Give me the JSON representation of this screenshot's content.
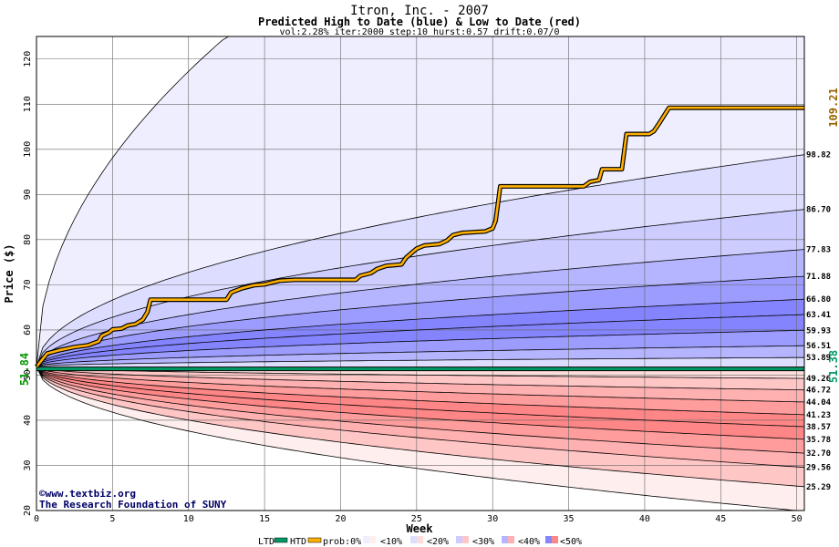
{
  "header": {
    "title": "Itron, Inc. - 2007",
    "subtitle": "Predicted High to Date (blue) &  Low to Date (red)",
    "params": "vol:2.28% iter:2000 step:10 hurst:0.57 drift:0.07/0"
  },
  "credits": {
    "copyright_symbol": "©",
    "site": "www.textbiz.org",
    "org": "The Research Foundation of SUNY"
  },
  "legend": {
    "ltd": "LTD",
    "htd": "HTD",
    "prob": "prob:0%",
    "b10": "<10%",
    "b20": "<20%",
    "b30": "<30%",
    "b40": "<40%",
    "b50": "<50%"
  },
  "colors": {
    "htd_line": "#ffb000",
    "ltd_line": "#009966",
    "start_label": "#009900",
    "end_htd_label": "#996600",
    "end_ltd_label": "#009966",
    "blue_bands": [
      "#eeeeff",
      "#ddddff",
      "#ccccff",
      "#b4b4ff",
      "#9c9cff",
      "#8484ff"
    ],
    "red_bands": [
      "#ffeeee",
      "#ffdcdc",
      "#ffc6c6",
      "#ffb0b0",
      "#ff9c9c",
      "#ff8686"
    ]
  },
  "chart_data": {
    "type": "area",
    "title": "Itron, Inc. - 2007",
    "subtitle": "Predicted High to Date (blue) &  Low to Date (red)",
    "xlabel": "Week",
    "ylabel": "Price ($)",
    "xlim": [
      0,
      50.5
    ],
    "ylim": [
      20,
      125
    ],
    "x_ticks": [
      0,
      5,
      10,
      15,
      20,
      25,
      30,
      35,
      40,
      45,
      50
    ],
    "y_ticks": [
      20,
      30,
      40,
      50,
      60,
      70,
      80,
      90,
      100,
      110,
      120
    ],
    "grid": true,
    "start_price": 51.84,
    "start_price_label": "51.84",
    "end_high_to_date": 109.21,
    "end_high_to_date_label": "109.21",
    "end_low_to_date": 51.38,
    "end_low_to_date_label": "51.38",
    "high_quantile_curves": [
      {
        "end_value": 98.82,
        "label": "98.82"
      },
      {
        "end_value": 86.7,
        "label": "86.70"
      },
      {
        "end_value": 77.83,
        "label": "77.83"
      },
      {
        "end_value": 71.88,
        "label": "71.88"
      },
      {
        "end_value": 66.8,
        "label": "66.80"
      },
      {
        "end_value": 63.41,
        "label": "63.41"
      },
      {
        "end_value": 59.93,
        "label": "59.93"
      },
      {
        "end_value": 56.51,
        "label": "56.51"
      },
      {
        "end_value": 53.89,
        "label": "53.89"
      }
    ],
    "low_quantile_curves": [
      {
        "end_value": 49.26,
        "label": "49.26"
      },
      {
        "end_value": 46.72,
        "label": "46.72"
      },
      {
        "end_value": 44.04,
        "label": "44.04"
      },
      {
        "end_value": 41.23,
        "label": "41.23"
      },
      {
        "end_value": 38.57,
        "label": "38.57"
      },
      {
        "end_value": 35.78,
        "label": "35.78"
      },
      {
        "end_value": 32.7,
        "label": "32.70"
      },
      {
        "end_value": 29.56,
        "label": "29.56"
      },
      {
        "end_value": 25.29,
        "label": "25.29"
      }
    ],
    "envelope": {
      "upper_week12_5": 125,
      "lower_week50": 20
    },
    "high_to_date_path": [
      [
        0,
        51.84
      ],
      [
        0.7,
        54.8
      ],
      [
        1.5,
        55.5
      ],
      [
        2.5,
        56.2
      ],
      [
        3.4,
        56.6
      ],
      [
        4.1,
        57.5
      ],
      [
        4.3,
        58.7
      ],
      [
        4.8,
        59.5
      ],
      [
        5.0,
        60.1
      ],
      [
        5.6,
        60.3
      ],
      [
        6.0,
        61.0
      ],
      [
        6.5,
        61.3
      ],
      [
        7.0,
        62.3
      ],
      [
        7.3,
        64.0
      ],
      [
        7.5,
        66.7
      ],
      [
        12.5,
        66.7
      ],
      [
        12.8,
        68.3
      ],
      [
        13.5,
        69.2
      ],
      [
        14.3,
        69.9
      ],
      [
        15.0,
        70.1
      ],
      [
        15.6,
        70.6
      ],
      [
        16.0,
        70.9
      ],
      [
        17.0,
        71.1
      ],
      [
        21.0,
        71.1
      ],
      [
        21.3,
        72.0
      ],
      [
        22.0,
        72.6
      ],
      [
        22.4,
        73.5
      ],
      [
        23.0,
        74.2
      ],
      [
        24.0,
        74.5
      ],
      [
        24.3,
        76.0
      ],
      [
        25.0,
        78.0
      ],
      [
        25.5,
        78.7
      ],
      [
        26.5,
        79.0
      ],
      [
        27.0,
        79.8
      ],
      [
        27.4,
        81.0
      ],
      [
        28.0,
        81.5
      ],
      [
        29.5,
        81.8
      ],
      [
        30.0,
        82.5
      ],
      [
        30.2,
        84.2
      ],
      [
        30.5,
        91.8
      ],
      [
        36.0,
        91.8
      ],
      [
        36.4,
        92.8
      ],
      [
        37.0,
        93.2
      ],
      [
        37.2,
        95.6
      ],
      [
        38.5,
        95.6
      ],
      [
        38.8,
        103.4
      ],
      [
        40.3,
        103.4
      ],
      [
        40.6,
        104.0
      ],
      [
        41.0,
        106.0
      ],
      [
        41.6,
        109.21
      ],
      [
        50.5,
        109.21
      ]
    ],
    "low_to_date_path": [
      [
        0,
        51.38
      ],
      [
        50.5,
        51.38
      ]
    ]
  }
}
